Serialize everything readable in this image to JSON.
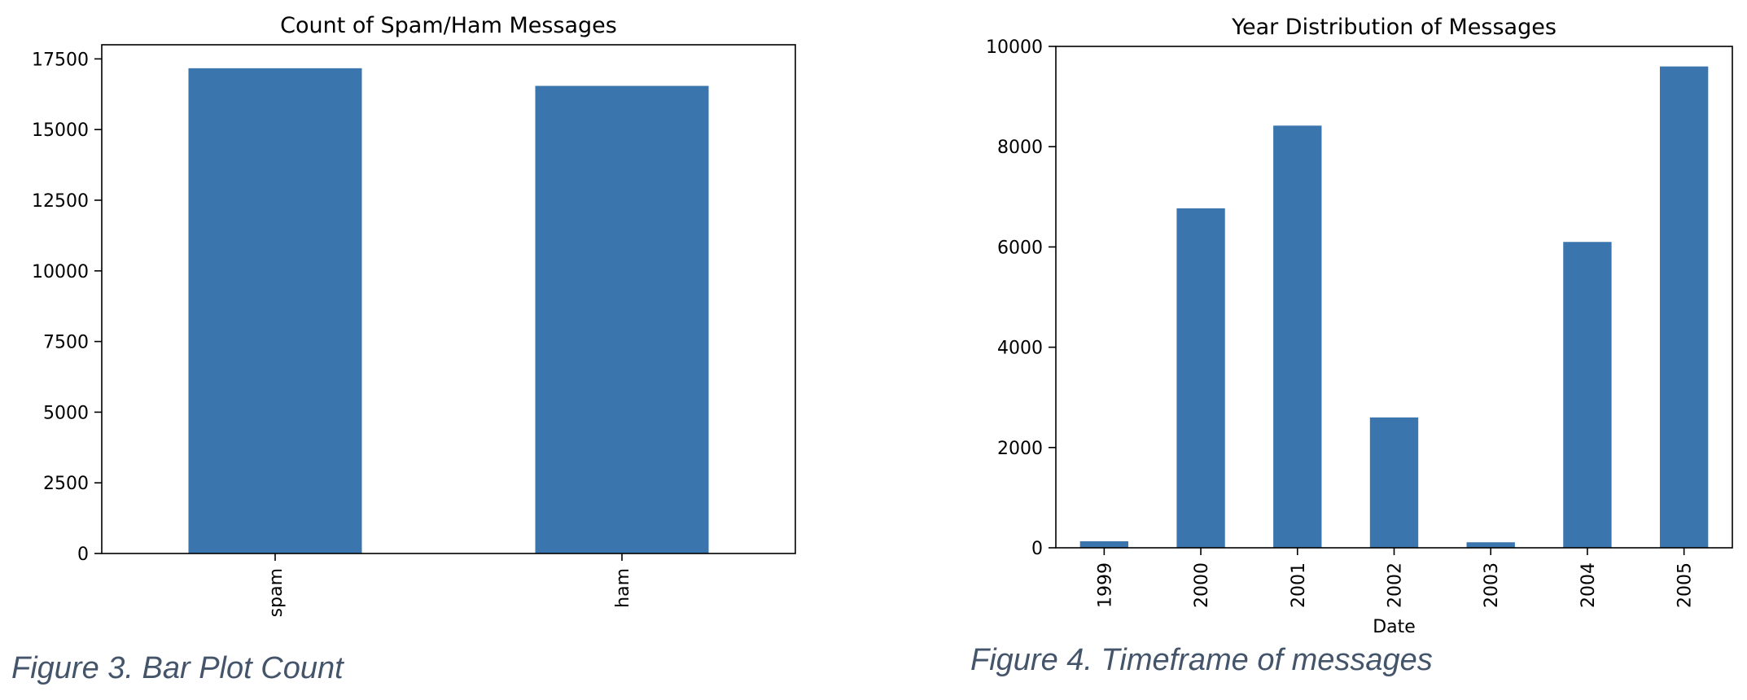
{
  "colors": {
    "bar": "#3a76ad",
    "axis": "#000000",
    "caption": "#44546a"
  },
  "captions": {
    "figure3": "Figure 3. Bar Plot Count",
    "figure4": "Figure 4. Timeframe of messages"
  },
  "chart_data": [
    {
      "type": "bar",
      "title": "Count of Spam/Ham Messages",
      "xlabel": "",
      "ylabel": "",
      "categories": [
        "spam",
        "ham"
      ],
      "values": [
        17170,
        16545
      ],
      "ylim": [
        0,
        18000
      ],
      "yticks": [
        0,
        2500,
        5000,
        7500,
        10000,
        12500,
        15000,
        17500
      ],
      "grid": false,
      "legend": "none"
    },
    {
      "type": "bar",
      "title": "Year Distribution of Messages",
      "xlabel": "Date",
      "ylabel": "",
      "categories": [
        "1999",
        "2000",
        "2001",
        "2002",
        "2003",
        "2004",
        "2005"
      ],
      "values": [
        130,
        6770,
        8420,
        2600,
        110,
        6100,
        9600
      ],
      "ylim": [
        0,
        10000
      ],
      "yticks": [
        0,
        2000,
        4000,
        6000,
        8000,
        10000
      ],
      "grid": false,
      "legend": "none"
    }
  ]
}
